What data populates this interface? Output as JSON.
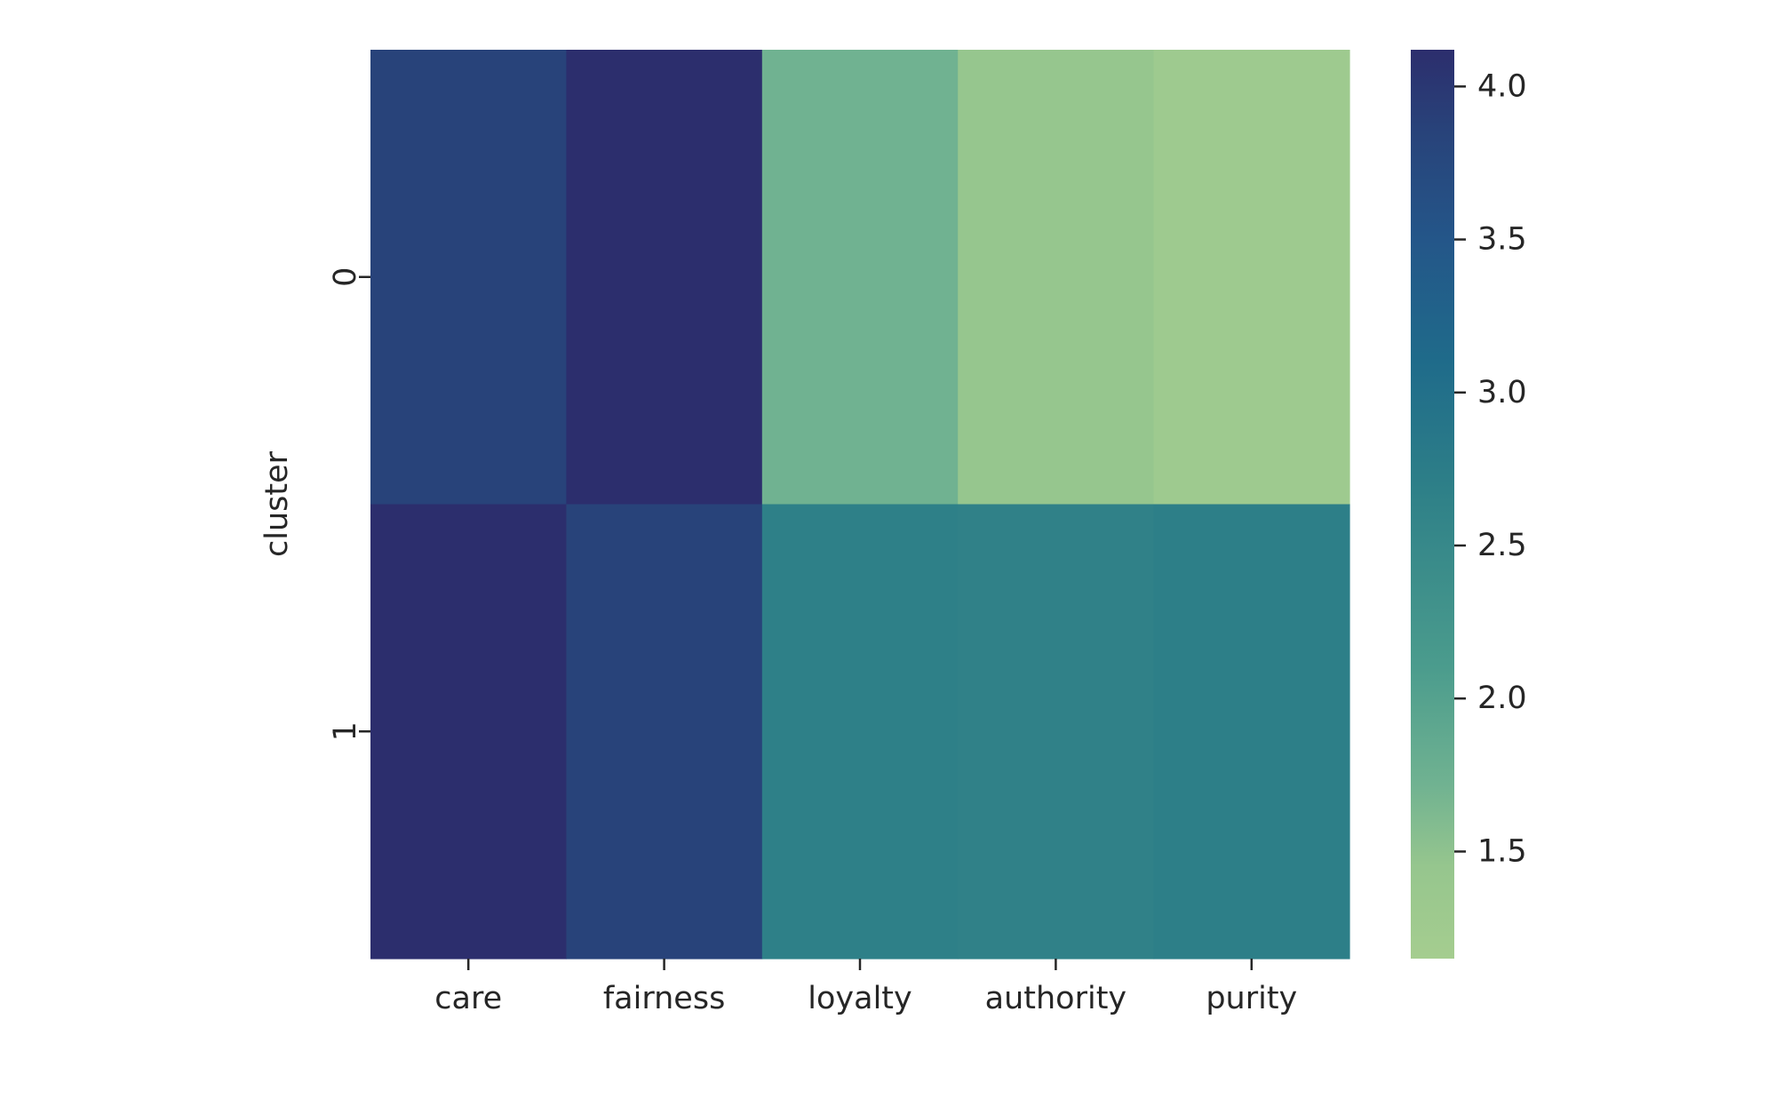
{
  "chart_data": {
    "type": "heatmap",
    "title": "",
    "xlabel": "",
    "ylabel": "cluster",
    "x_categories": [
      "care",
      "fairness",
      "loyalty",
      "authority",
      "purity"
    ],
    "y_categories": [
      "0",
      "1"
    ],
    "values": [
      [
        3.85,
        4.12,
        1.72,
        1.45,
        1.3
      ],
      [
        4.12,
        3.85,
        2.68,
        2.65,
        2.7
      ]
    ],
    "colorbar": {
      "min": 1.15,
      "max": 4.12,
      "ticks": [
        "1.5",
        "2.0",
        "2.5",
        "3.0",
        "3.5",
        "4.0"
      ],
      "tick_values": [
        1.5,
        2.0,
        2.5,
        3.0,
        3.5,
        4.0
      ],
      "colormap": "crest",
      "color_stops": [
        {
          "v": 1.15,
          "c": "#a5cd8f"
        },
        {
          "v": 1.45,
          "c": "#96c68e"
        },
        {
          "v": 1.72,
          "c": "#70b291"
        },
        {
          "v": 2.1,
          "c": "#4b9c8d"
        },
        {
          "v": 2.68,
          "c": "#2e8088"
        },
        {
          "v": 3.1,
          "c": "#1f6b8a"
        },
        {
          "v": 3.5,
          "c": "#245689"
        },
        {
          "v": 3.85,
          "c": "#28437a"
        },
        {
          "v": 4.12,
          "c": "#2c2e6d"
        }
      ]
    },
    "grid": false,
    "legend": "colorbar-right"
  }
}
